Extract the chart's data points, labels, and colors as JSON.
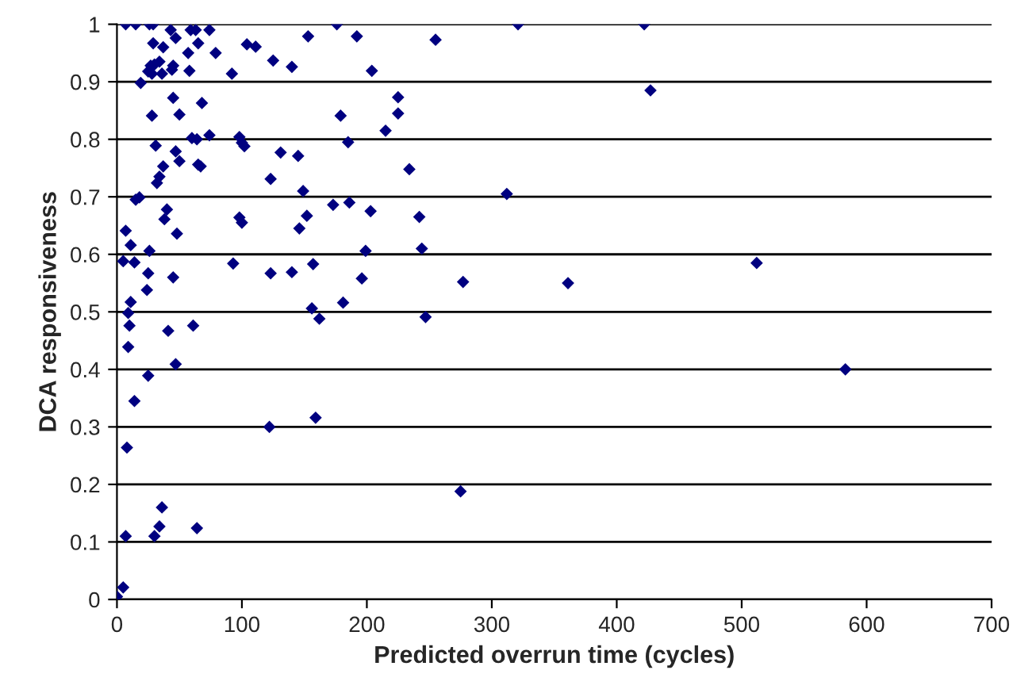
{
  "chart_data": {
    "type": "scatter",
    "xlabel": "Predicted overrun time (cycles)",
    "ylabel": "DCA responsiveness",
    "xlim": [
      0,
      700
    ],
    "xticks": [
      0,
      100,
      200,
      300,
      400,
      500,
      600,
      700
    ],
    "ylim": [
      0,
      1
    ],
    "yticks": [
      0,
      0.1,
      0.2,
      0.3,
      0.4,
      0.5,
      0.6,
      0.7,
      0.8,
      0.9,
      1
    ],
    "grid": "y",
    "marker": "diamond",
    "series": [
      {
        "color": "#000080",
        "x": [
          7,
          15,
          26,
          29,
          43,
          59,
          63,
          74,
          47,
          29,
          37,
          65,
          57,
          79,
          104,
          111,
          153,
          125,
          140,
          34,
          27,
          30,
          25,
          28,
          36,
          45,
          44,
          58,
          92,
          19,
          45,
          68,
          28,
          50,
          60,
          64,
          74,
          98,
          100,
          102,
          31,
          47,
          50,
          37,
          65,
          67,
          131,
          145,
          34,
          32,
          123,
          15,
          18,
          149,
          40,
          38,
          98,
          100,
          152,
          7,
          146,
          11,
          48,
          26,
          5,
          14,
          93,
          25,
          45,
          123,
          140,
          24,
          11,
          9,
          10,
          41,
          61,
          9,
          47,
          25,
          14,
          8,
          122,
          36,
          34,
          64,
          7,
          30,
          5,
          0,
          176,
          321,
          192,
          255,
          204,
          225,
          179,
          225,
          215,
          185,
          234,
          312,
          173,
          186,
          203,
          242,
          199,
          244,
          157,
          196,
          277,
          156,
          162,
          181,
          247,
          159,
          275,
          422,
          427,
          361,
          512,
          583
        ],
        "values": [
          1.0,
          1.0,
          1.0,
          1.0,
          0.99,
          0.99,
          0.99,
          0.99,
          0.976,
          0.967,
          0.96,
          0.967,
          0.95,
          0.95,
          0.965,
          0.961,
          0.979,
          0.937,
          0.926,
          0.935,
          0.928,
          0.93,
          0.918,
          0.914,
          0.914,
          0.928,
          0.921,
          0.919,
          0.914,
          0.898,
          0.872,
          0.863,
          0.841,
          0.843,
          0.802,
          0.8,
          0.807,
          0.804,
          0.794,
          0.788,
          0.789,
          0.779,
          0.762,
          0.753,
          0.756,
          0.753,
          0.777,
          0.771,
          0.735,
          0.724,
          0.731,
          0.695,
          0.699,
          0.71,
          0.678,
          0.661,
          0.664,
          0.655,
          0.667,
          0.641,
          0.645,
          0.616,
          0.636,
          0.606,
          0.588,
          0.586,
          0.584,
          0.567,
          0.56,
          0.567,
          0.569,
          0.538,
          0.517,
          0.498,
          0.476,
          0.467,
          0.476,
          0.439,
          0.409,
          0.389,
          0.345,
          0.264,
          0.3,
          0.16,
          0.127,
          0.124,
          0.11,
          0.11,
          0.021,
          0.005,
          1.0,
          1.0,
          0.979,
          0.973,
          0.919,
          0.873,
          0.841,
          0.845,
          0.815,
          0.795,
          0.748,
          0.705,
          0.686,
          0.69,
          0.675,
          0.665,
          0.606,
          0.61,
          0.583,
          0.558,
          0.552,
          0.506,
          0.488,
          0.516,
          0.491,
          0.316,
          0.188,
          1.0,
          0.885,
          0.55,
          0.585,
          0.4
        ]
      }
    ]
  }
}
